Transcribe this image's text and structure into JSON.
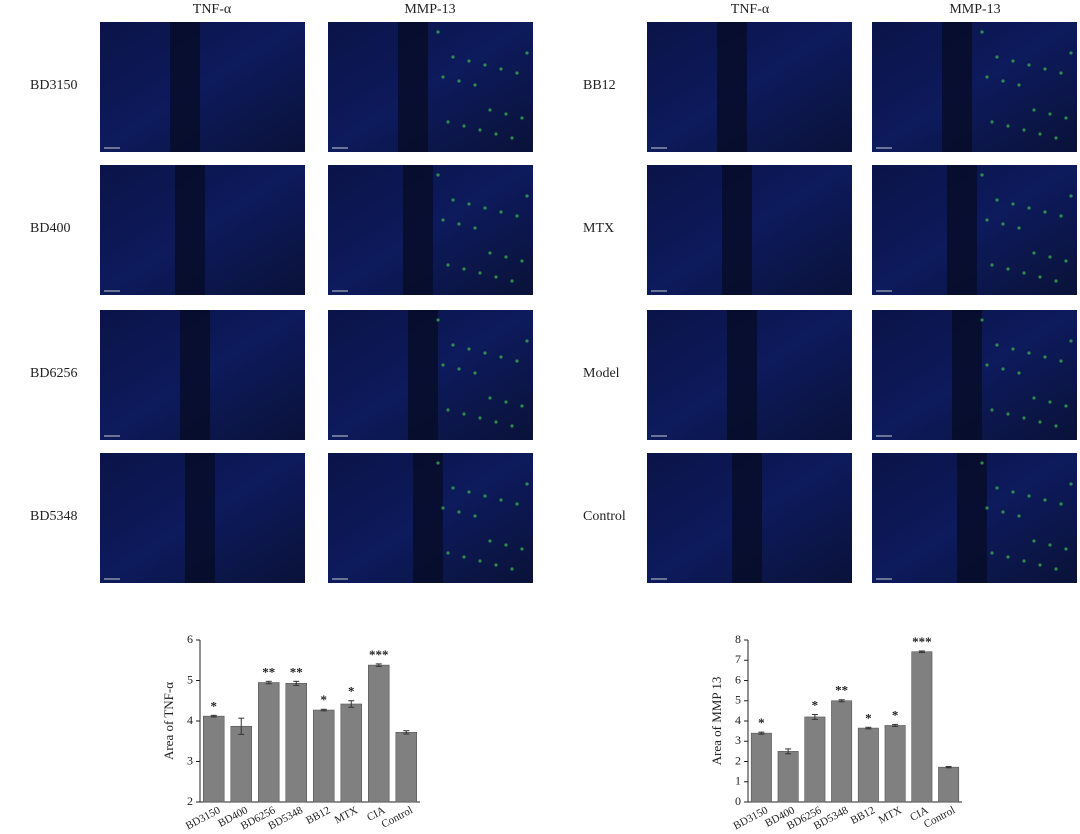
{
  "figure": {
    "groups": [
      {
        "columns": [
          "TNF-α",
          "MMP-13"
        ],
        "rows": [
          "BD3150",
          "BD400",
          "BD6256",
          "BD5348"
        ]
      },
      {
        "columns": [
          "TNF-α",
          "MMP-13"
        ],
        "rows": [
          "BB12",
          "MTX",
          "Model",
          "Control"
        ]
      }
    ]
  },
  "chart_data": [
    {
      "type": "bar",
      "y_label": "Area of TNF-α",
      "categories": [
        "BD3150",
        "BD400",
        "BD6256",
        "BD5348",
        "BB12",
        "MTX",
        "CIA",
        "Control"
      ],
      "values": [
        4.12,
        3.87,
        4.95,
        4.93,
        4.27,
        4.42,
        5.38,
        3.72
      ],
      "errors": [
        0.02,
        0.2,
        0.03,
        0.05,
        0.02,
        0.08,
        0.03,
        0.04
      ],
      "annotations": [
        "*",
        null,
        "**",
        "**",
        "*",
        "*",
        "***",
        null
      ],
      "color": "#808080",
      "ylim": [
        2,
        6
      ],
      "yticks": [
        2,
        3,
        4,
        5,
        6
      ]
    },
    {
      "type": "bar",
      "y_label": "Area of MMP 13",
      "categories": [
        "BD3150",
        "BD400",
        "BD6256",
        "BD5348",
        "BB12",
        "MTX",
        "CIA",
        "Control"
      ],
      "values": [
        3.4,
        2.5,
        4.2,
        5.0,
        3.65,
        3.78,
        7.42,
        1.72
      ],
      "errors": [
        0.05,
        0.12,
        0.12,
        0.05,
        0.04,
        0.05,
        0.04,
        0.03
      ],
      "annotations": [
        "*",
        null,
        "*",
        "**",
        "*",
        "*",
        "***",
        null
      ],
      "color": "#808080",
      "ylim": [
        0,
        8
      ],
      "yticks": [
        0,
        1,
        2,
        3,
        4,
        5,
        6,
        7,
        8
      ]
    }
  ]
}
